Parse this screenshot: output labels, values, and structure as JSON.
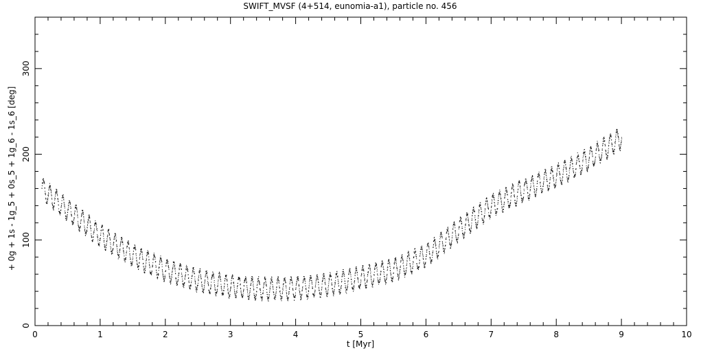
{
  "chart_data": {
    "type": "scatter",
    "title": "SWIFT_MVSF (4+514, eunomia-a1), particle no. 456",
    "xlabel": "t [Myr]",
    "ylabel": "+ 0g + 1s - 1g_5 + 0s_5 + 1g_6 - 1s_6 [deg]",
    "xlim": [
      0,
      10
    ],
    "ylim": [
      0,
      360
    ],
    "xticks": [
      0,
      1,
      2,
      3,
      4,
      5,
      6,
      7,
      8,
      9,
      10
    ],
    "yticks": [
      0,
      100,
      200,
      300
    ],
    "grid": false,
    "series": [
      {
        "marker": "dot",
        "trend_points": [
          {
            "x": 0.1,
            "y": 160
          },
          {
            "x": 0.5,
            "y": 135
          },
          {
            "x": 1.0,
            "y": 105
          },
          {
            "x": 1.5,
            "y": 82
          },
          {
            "x": 2.0,
            "y": 65
          },
          {
            "x": 2.5,
            "y": 53
          },
          {
            "x": 3.0,
            "y": 46
          },
          {
            "x": 3.5,
            "y": 43
          },
          {
            "x": 4.0,
            "y": 44
          },
          {
            "x": 4.5,
            "y": 48
          },
          {
            "x": 5.0,
            "y": 56
          },
          {
            "x": 5.5,
            "y": 65
          },
          {
            "x": 6.0,
            "y": 82
          },
          {
            "x": 6.5,
            "y": 112
          },
          {
            "x": 7.0,
            "y": 140
          },
          {
            "x": 7.5,
            "y": 158
          },
          {
            "x": 8.0,
            "y": 175
          },
          {
            "x": 8.5,
            "y": 195
          },
          {
            "x": 9.0,
            "y": 220
          }
        ],
        "oscillation_amplitude_deg": 12,
        "oscillation_period_myr": 0.1
      }
    ]
  }
}
